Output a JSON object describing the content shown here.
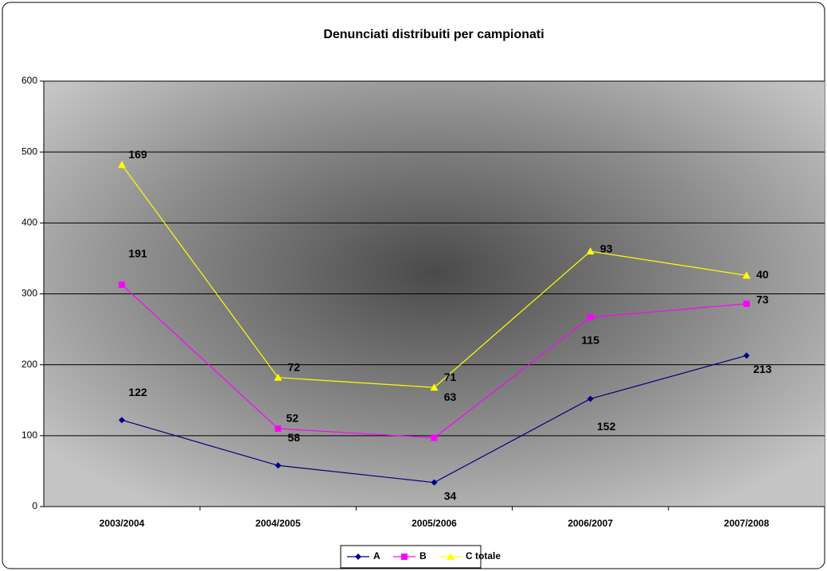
{
  "chart_data": {
    "type": "line",
    "stacked": true,
    "title": "Denunciati distribuiti per campionati",
    "categories": [
      "2003/2004",
      "2004/2005",
      "2005/2006",
      "2006/2007",
      "2007/2008"
    ],
    "series": [
      {
        "name": "A",
        "color": "#000080",
        "marker": "diamond",
        "values": [
          122,
          58,
          34,
          152,
          213
        ]
      },
      {
        "name": "B",
        "color": "#ff00ff",
        "marker": "square",
        "values": [
          191,
          52,
          63,
          115,
          73
        ]
      },
      {
        "name": "C totale",
        "color": "#ffff00",
        "marker": "triangle",
        "values": [
          169,
          72,
          71,
          93,
          40
        ]
      }
    ],
    "ylim": [
      0,
      600
    ],
    "yticks": [
      0,
      100,
      200,
      300,
      400,
      500,
      600
    ],
    "grid": true,
    "legend": "bottom"
  }
}
